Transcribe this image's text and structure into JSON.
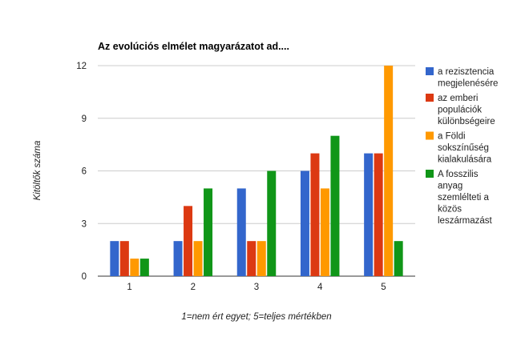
{
  "chart_data": {
    "type": "bar",
    "title": "Az evolúciós elmélet magyarázatot ad....",
    "xlabel": "1=nem ért egyet; 5=teljes mértékben",
    "ylabel": "Kitöltők száma",
    "categories": [
      "1",
      "2",
      "3",
      "4",
      "5"
    ],
    "ylim": [
      0,
      12
    ],
    "yticks": [
      "0",
      "3",
      "6",
      "9",
      "12"
    ],
    "grid": true,
    "legend_position": "right",
    "series": [
      {
        "name": "a rezisztencia megjelenésére",
        "legend_lines": [
          "a rezisztencia",
          "megjelenésére"
        ],
        "color": "#3366cc",
        "values": [
          2,
          2,
          5,
          6,
          7
        ]
      },
      {
        "name": "az emberi populációk különbségeire",
        "legend_lines": [
          "az emberi",
          "populációk",
          "különbségeire"
        ],
        "color": "#dc3912",
        "values": [
          2,
          4,
          2,
          7,
          7
        ]
      },
      {
        "name": "a Földi sokszínűség kialakulására",
        "legend_lines": [
          "a Földi",
          "sokszínűség",
          "kialakulására"
        ],
        "color": "#ff9900",
        "values": [
          1,
          2,
          2,
          5,
          12
        ]
      },
      {
        "name": "A fosszilis anyag szemlélteti a közös leszármazást",
        "legend_lines": [
          "A fosszilis",
          "anyag",
          "szemlélteti a",
          "közös",
          "leszármazást"
        ],
        "color": "#109618",
        "values": [
          1,
          5,
          6,
          8,
          2
        ]
      }
    ]
  }
}
